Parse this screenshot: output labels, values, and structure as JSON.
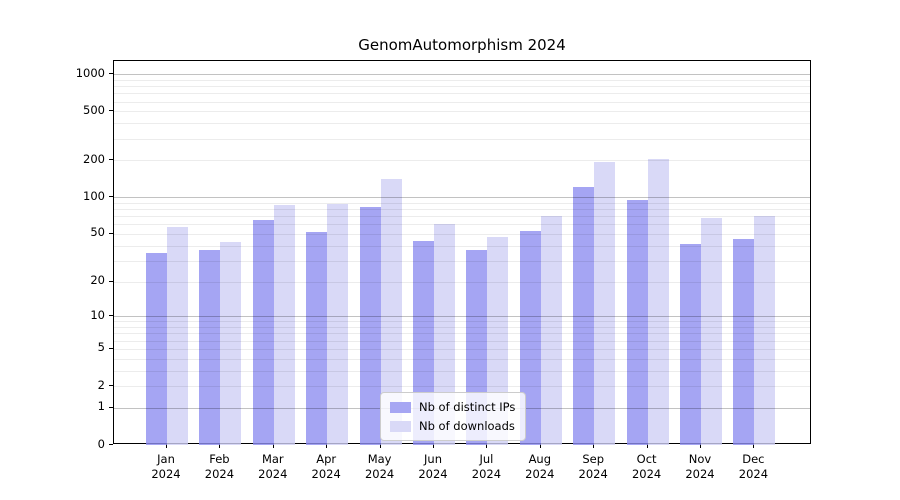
{
  "title": "GenomAutomorphism 2024",
  "legend": {
    "items": [
      {
        "label": "Nb of distinct IPs",
        "swatch_color": "#a6a6f3"
      },
      {
        "label": "Nb of downloads",
        "swatch_color": "#d9d9f7"
      }
    ]
  },
  "chart_data": {
    "type": "bar",
    "title": "GenomAutomorphism 2024",
    "categories": [
      "Jan 2024",
      "Feb 2024",
      "Mar 2024",
      "Apr 2024",
      "May 2024",
      "Jun 2024",
      "Jul 2024",
      "Aug 2024",
      "Sep 2024",
      "Oct 2024",
      "Nov 2024",
      "Dec 2024"
    ],
    "x_tick_line1": [
      "Jan",
      "Feb",
      "Mar",
      "Apr",
      "May",
      "Jun",
      "Jul",
      "Aug",
      "Sep",
      "Oct",
      "Nov",
      "Dec"
    ],
    "x_tick_line2": [
      "2024",
      "2024",
      "2024",
      "2024",
      "2024",
      "2024",
      "2024",
      "2024",
      "2024",
      "2024",
      "2024",
      "2024"
    ],
    "series": [
      {
        "name": "Nb of distinct IPs",
        "fill": "rgba(143,143,240,0.8)",
        "swatch": "#a6a6f3",
        "values": [
          35,
          37,
          65,
          52,
          83,
          44,
          37,
          53,
          121,
          95,
          41,
          45
        ]
      },
      {
        "name": "Nb of downloads",
        "fill": "rgba(208,208,245,0.8)",
        "swatch": "#d9d9f7",
        "values": [
          57,
          43,
          86,
          88,
          140,
          60,
          47,
          70,
          194,
          205,
          68,
          70
        ]
      }
    ],
    "xlabel": "",
    "ylabel": "",
    "y_scale": "log1p",
    "y_ticks": [
      0,
      1,
      2,
      5,
      10,
      20,
      50,
      100,
      200,
      500,
      1000
    ],
    "y_minor_gridlines": [
      2,
      3,
      4,
      5,
      6,
      7,
      8,
      9,
      20,
      30,
      40,
      50,
      60,
      70,
      80,
      90,
      200,
      300,
      400,
      500,
      600,
      700,
      800,
      900
    ],
    "y_major_gridlines": [
      1,
      10,
      100,
      1000
    ],
    "ylim_max": 1278,
    "grid": true,
    "legend_position": "lower center"
  }
}
